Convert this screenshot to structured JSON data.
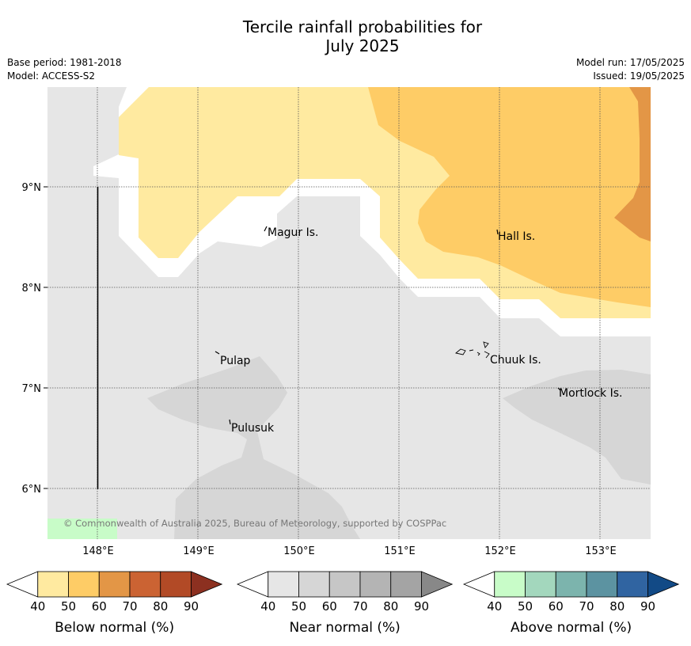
{
  "title_line1": "Tercile rainfall probabilities for",
  "title_line2": "July 2025",
  "base_period": "Base period: 1981-2018",
  "model": "Model: ACCESS-S2",
  "model_run": "Model run: 17/05/2025",
  "issued": "Issued: 19/05/2025",
  "copyright": "© Commonwealth of Australia 2025, Bureau of Meteorology, supported by COSPPac",
  "x_ticks": [
    "148°E",
    "149°E",
    "150°E",
    "151°E",
    "152°E",
    "153°E"
  ],
  "y_ticks": [
    "9°N",
    "8°N",
    "7°N",
    "6°N"
  ],
  "places": [
    {
      "name": "Magur Is."
    },
    {
      "name": "Hall Is."
    },
    {
      "name": "Pulap"
    },
    {
      "name": "Chuuk Is."
    },
    {
      "name": "Mortlock Is."
    },
    {
      "name": "Pulusuk"
    }
  ],
  "colorbars": [
    {
      "label": "Below normal (%)",
      "ticks": [
        "40",
        "50",
        "60",
        "70",
        "80",
        "90"
      ],
      "colors": [
        "#ffeaa0",
        "#fecc66",
        "#e39646",
        "#cb6333",
        "#b24a26",
        "#8c3020"
      ]
    },
    {
      "label": "Near normal (%)",
      "ticks": [
        "40",
        "50",
        "60",
        "70",
        "80",
        "90"
      ],
      "colors": [
        "#e6e6e6",
        "#d6d6d6",
        "#c6c6c6",
        "#b4b4b4",
        "#a4a4a4",
        "#888888"
      ]
    },
    {
      "label": "Above normal (%)",
      "ticks": [
        "40",
        "50",
        "60",
        "70",
        "80",
        "90"
      ],
      "colors": [
        "#c8fcc8",
        "#a3d7bd",
        "#7cb4ad",
        "#5c93a1",
        "#3064a1",
        "#124a86"
      ]
    }
  ]
}
